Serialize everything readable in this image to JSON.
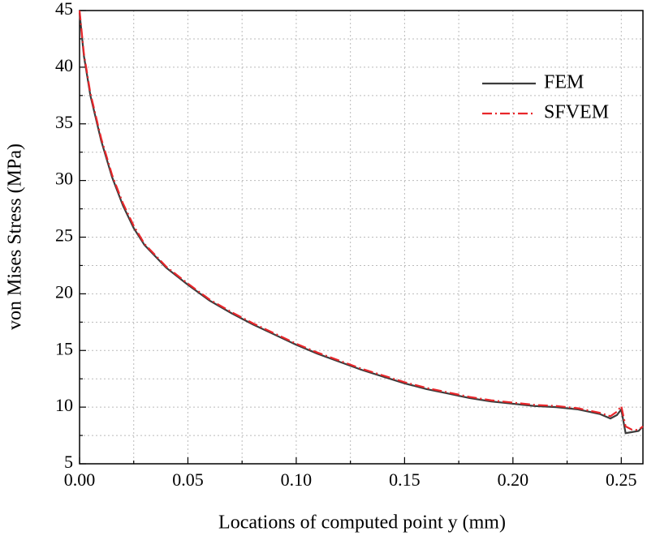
{
  "chart_data": {
    "type": "line",
    "xlabel": "Locations of computed point y (mm)",
    "ylabel": "von Mises Stress (MPa)",
    "xlim": [
      0,
      0.26
    ],
    "ylim": [
      5,
      45
    ],
    "xticks": [
      {
        "value": 0,
        "label": "0.00"
      },
      0.05,
      {
        "value": 0.1,
        "label": "0.10"
      },
      0.15,
      {
        "value": 0.2,
        "label": "0.20"
      },
      0.25
    ],
    "yticks": [
      5,
      10,
      15,
      20,
      25,
      30,
      35,
      40,
      45
    ],
    "xminorticks": [
      0.025,
      0.075,
      0.125,
      0.175,
      0.225
    ],
    "yminorticks": [
      7.5,
      12.5,
      17.5,
      22.5,
      27.5,
      32.5,
      37.5,
      42.5
    ],
    "grid": true,
    "x": [
      0,
      0.002,
      0.005,
      0.01,
      0.015,
      0.02,
      0.025,
      0.03,
      0.04,
      0.05,
      0.06,
      0.07,
      0.08,
      0.09,
      0.1,
      0.11,
      0.12,
      0.13,
      0.14,
      0.15,
      0.16,
      0.17,
      0.18,
      0.19,
      0.2,
      0.21,
      0.22,
      0.23,
      0.24,
      0.245,
      0.248,
      0.25,
      0.252,
      0.255,
      0.258,
      0.26
    ],
    "series": [
      {
        "name": "FEM",
        "color": "#3c3c3c",
        "linestyle": "solid",
        "values": [
          44.8,
          41,
          37.5,
          33.5,
          30.3,
          27.8,
          25.8,
          24.3,
          22.3,
          20.8,
          19.4,
          18.3,
          17.3,
          16.4,
          15.5,
          14.7,
          14.0,
          13.3,
          12.7,
          12.1,
          11.6,
          11.2,
          10.8,
          10.5,
          10.3,
          10.1,
          10.0,
          9.8,
          9.4,
          9.0,
          9.3,
          9.8,
          7.7,
          7.8,
          7.9,
          8.3
        ]
      },
      {
        "name": "SFVEM",
        "color": "#e8262a",
        "linestyle": "dashdot",
        "values": [
          45,
          41.2,
          37.7,
          33.7,
          30.5,
          28.0,
          26.0,
          24.4,
          22.4,
          20.9,
          19.5,
          18.4,
          17.4,
          16.5,
          15.6,
          14.8,
          14.1,
          13.4,
          12.8,
          12.2,
          11.7,
          11.3,
          10.9,
          10.6,
          10.4,
          10.2,
          10.1,
          9.9,
          9.5,
          9.2,
          9.6,
          10.1,
          8.3,
          8.0,
          8.0,
          8.3
        ]
      }
    ]
  }
}
